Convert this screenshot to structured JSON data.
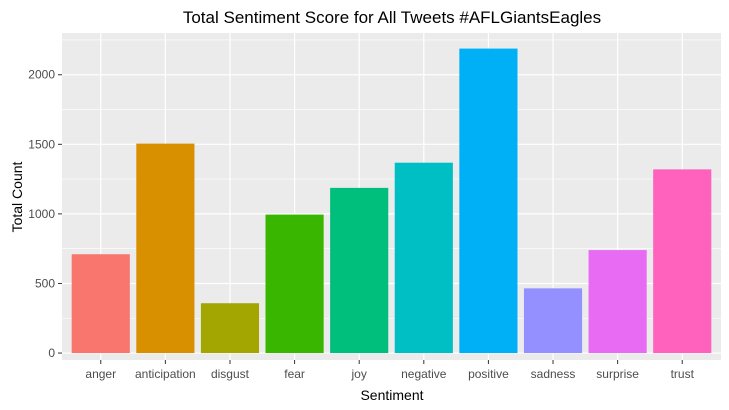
{
  "chart_data": {
    "type": "bar",
    "title": "Total Sentiment Score for All Tweets #AFLGiantsEagles",
    "xlabel": "Sentiment",
    "ylabel": "Total Count",
    "categories": [
      "anger",
      "anticipation",
      "disgust",
      "fear",
      "joy",
      "negative",
      "positive",
      "sadness",
      "surprise",
      "trust"
    ],
    "values": [
      710,
      1505,
      358,
      995,
      1187,
      1368,
      2188,
      465,
      740,
      1320
    ],
    "colors": [
      "#F8766D",
      "#D89000",
      "#A3A500",
      "#39B600",
      "#00BF7D",
      "#00BFC4",
      "#00B0F6",
      "#9590FF",
      "#E76BF3",
      "#FF62BC"
    ],
    "ylim": [
      -50,
      2300
    ],
    "yticks": [
      0,
      500,
      1000,
      1500,
      2000
    ],
    "y_tick_labels": [
      "0",
      "500",
      "1000",
      "1500",
      "2000"
    ],
    "grid": true,
    "legend": "none",
    "panel_background": "#EBEBEB",
    "grid_color": "#FFFFFF"
  }
}
